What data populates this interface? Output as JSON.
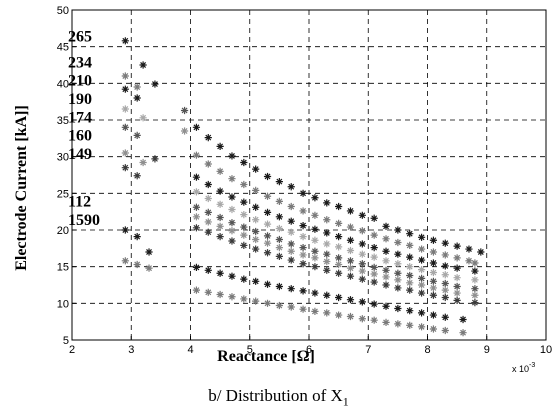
{
  "caption": {
    "text": "b/ Distribution of X",
    "subscript": "1"
  },
  "chart_data": {
    "type": "scatter",
    "title": "",
    "xlabel": "Reactance [Ω]",
    "ylabel": "Electrode Current [kA]]",
    "x_multiplier_label": "x 10",
    "x_multiplier_exponent": "-3",
    "xlim": [
      2,
      10
    ],
    "ylim": [
      5,
      50
    ],
    "xticks": [
      2,
      3,
      4,
      5,
      6,
      7,
      8,
      9,
      10
    ],
    "yticks": [
      5,
      10,
      15,
      20,
      25,
      30,
      35,
      40,
      45,
      50
    ],
    "grid": true,
    "grid_style": "dashed",
    "marker": "asterisk",
    "series": [
      {
        "name": "265",
        "color": "#1a1a1a",
        "label_y": 46.5,
        "x": [
          2.9,
          3.2,
          4.1,
          4.3,
          4.5,
          4.7,
          4.9,
          5.1,
          5.3,
          5.5,
          5.7,
          5.9,
          6.1,
          6.3,
          6.5,
          6.7,
          6.9,
          7.1,
          7.3,
          7.5,
          7.7,
          7.9,
          8.1,
          8.3,
          8.5,
          8.7,
          8.9
        ],
        "y": [
          45.8,
          42.5,
          34.0,
          32.6,
          31.4,
          30.1,
          29.2,
          28.3,
          27.3,
          26.6,
          25.9,
          25.0,
          24.4,
          23.7,
          23.2,
          22.6,
          22.0,
          21.6,
          20.5,
          20.0,
          19.5,
          19.0,
          18.6,
          18.2,
          17.8,
          17.4,
          17.0
        ]
      },
      {
        "name": "234",
        "color": "#7a7a7a",
        "label_y": 43.0,
        "x": [
          2.9,
          3.1,
          4.1,
          4.3,
          4.5,
          4.7,
          4.9,
          5.1,
          5.3,
          5.5,
          5.7,
          5.9,
          6.1,
          6.3,
          6.5,
          6.7,
          6.9,
          7.1,
          7.3,
          7.5,
          7.7,
          7.9,
          8.1,
          8.3,
          8.5,
          8.7,
          8.8
        ],
        "y": [
          41.0,
          39.5,
          30.2,
          29.0,
          28.0,
          27.0,
          26.2,
          25.4,
          24.6,
          23.9,
          23.2,
          22.6,
          22.0,
          21.4,
          20.9,
          20.4,
          19.9,
          19.3,
          18.8,
          18.3,
          17.9,
          17.4,
          17.0,
          16.6,
          16.2,
          15.8,
          15.5
        ]
      },
      {
        "name": "210",
        "color": "#1a1a1a",
        "label_y": 40.5,
        "x": [
          2.9,
          3.1,
          3.4,
          4.1,
          4.3,
          4.5,
          4.7,
          4.9,
          5.1,
          5.3,
          5.5,
          5.7,
          5.9,
          6.1,
          6.3,
          6.5,
          6.7,
          6.9,
          7.1,
          7.3,
          7.5,
          7.7,
          7.9,
          8.1,
          8.3,
          8.5,
          8.8
        ],
        "y": [
          39.2,
          38.0,
          39.9,
          27.2,
          26.2,
          25.3,
          24.5,
          23.8,
          23.1,
          22.4,
          21.8,
          21.2,
          20.6,
          20.1,
          19.6,
          19.1,
          18.6,
          18.1,
          17.6,
          17.1,
          16.7,
          16.3,
          15.9,
          15.5,
          15.1,
          14.8,
          14.4
        ]
      },
      {
        "name": "190",
        "color": "#a8a8a8",
        "label_y": 38.0,
        "x": [
          2.9,
          3.2,
          4.1,
          4.3,
          4.5,
          4.7,
          4.9,
          5.1,
          5.3,
          5.5,
          5.7,
          5.9,
          6.1,
          6.3,
          6.5,
          6.7,
          6.9,
          7.1,
          7.3,
          7.5,
          7.7,
          7.9,
          8.1,
          8.3,
          8.5,
          8.8
        ],
        "y": [
          36.5,
          35.3,
          25.2,
          24.3,
          23.5,
          22.8,
          22.1,
          21.4,
          20.8,
          20.2,
          19.7,
          19.1,
          18.6,
          18.1,
          17.7,
          17.2,
          16.7,
          16.3,
          15.8,
          15.4,
          15.0,
          14.6,
          14.2,
          13.9,
          13.5,
          13.2
        ]
      },
      {
        "name": "174",
        "color": "#555555",
        "label_y": 35.5,
        "x": [
          2.9,
          3.1,
          3.9,
          4.1,
          4.3,
          4.5,
          4.7,
          4.9,
          5.1,
          5.3,
          5.5,
          5.7,
          5.9,
          6.1,
          6.3,
          6.5,
          6.7,
          6.9,
          7.1,
          7.3,
          7.5,
          7.7,
          7.9,
          8.1,
          8.3,
          8.5,
          8.8
        ],
        "y": [
          34.0,
          32.9,
          36.3,
          23.1,
          22.4,
          21.7,
          21.0,
          20.4,
          19.8,
          19.2,
          18.7,
          18.1,
          17.6,
          17.1,
          16.7,
          16.2,
          15.8,
          15.4,
          14.9,
          14.5,
          14.1,
          13.8,
          13.4,
          13.0,
          12.7,
          12.3,
          12.0
        ]
      },
      {
        "name": "160",
        "color": "#8f8f8f",
        "label_y": 33.0,
        "x": [
          2.9,
          3.2,
          3.9,
          4.1,
          4.3,
          4.5,
          4.7,
          4.9,
          5.1,
          5.3,
          5.5,
          5.7,
          5.9,
          6.1,
          6.3,
          6.5,
          6.7,
          6.9,
          7.1,
          7.3,
          7.5,
          7.7,
          7.9,
          8.1,
          8.3,
          8.5,
          8.8
        ],
        "y": [
          30.5,
          29.2,
          33.5,
          21.8,
          21.1,
          20.5,
          19.9,
          19.3,
          18.7,
          18.2,
          17.6,
          17.1,
          16.6,
          16.2,
          15.7,
          15.3,
          14.8,
          14.4,
          14.0,
          13.6,
          13.2,
          12.8,
          12.5,
          12.1,
          11.8,
          11.4,
          11.1
        ]
      },
      {
        "name": "149",
        "color": "#3a3a3a",
        "label_y": 30.5,
        "x": [
          2.9,
          3.1,
          3.4,
          4.1,
          4.3,
          4.5,
          4.7,
          4.9,
          5.1,
          5.3,
          5.5,
          5.7,
          5.9,
          6.1,
          6.3,
          6.5,
          6.7,
          6.9,
          7.1,
          7.3,
          7.5,
          7.7,
          7.9,
          8.1,
          8.3,
          8.5,
          8.8
        ],
        "y": [
          28.5,
          27.4,
          29.7,
          20.3,
          19.7,
          19.1,
          18.5,
          17.9,
          17.4,
          16.9,
          16.4,
          15.9,
          15.4,
          15.0,
          14.5,
          14.1,
          13.7,
          13.3,
          12.9,
          12.5,
          12.1,
          11.8,
          11.4,
          11.1,
          10.8,
          10.4,
          10.1
        ]
      },
      {
        "name": "112",
        "color": "#1a1a1a",
        "label_y": 24.0,
        "x": [
          2.9,
          3.1,
          3.3,
          4.1,
          4.3,
          4.5,
          4.7,
          4.9,
          5.1,
          5.3,
          5.5,
          5.7,
          5.9,
          6.1,
          6.3,
          6.5,
          6.7,
          6.9,
          7.1,
          7.3,
          7.5,
          7.7,
          7.9,
          8.1,
          8.3,
          8.6
        ],
        "y": [
          20.0,
          19.1,
          17.0,
          14.9,
          14.5,
          14.1,
          13.7,
          13.3,
          13.0,
          12.6,
          12.3,
          12.0,
          11.7,
          11.4,
          11.1,
          10.8,
          10.5,
          10.2,
          9.9,
          9.6,
          9.3,
          9.0,
          8.7,
          8.4,
          8.1,
          7.8
        ]
      },
      {
        "name": "90",
        "color": "#7a7a7a",
        "label_y": 21.5,
        "x": [
          2.9,
          3.1,
          3.3,
          4.1,
          4.3,
          4.5,
          4.7,
          4.9,
          5.1,
          5.3,
          5.5,
          5.7,
          5.9,
          6.1,
          6.3,
          6.5,
          6.7,
          6.9,
          7.1,
          7.3,
          7.5,
          7.7,
          7.9,
          8.1,
          8.3,
          8.6
        ],
        "y": [
          15.8,
          15.3,
          14.8,
          11.8,
          11.5,
          11.2,
          10.9,
          10.6,
          10.3,
          10.0,
          9.7,
          9.5,
          9.2,
          8.9,
          8.7,
          8.4,
          8.2,
          7.9,
          7.7,
          7.4,
          7.2,
          7.0,
          6.8,
          6.5,
          6.3,
          6.0
        ]
      }
    ],
    "extra_label": {
      "text": "15",
      "label_y": 21.5
    }
  }
}
